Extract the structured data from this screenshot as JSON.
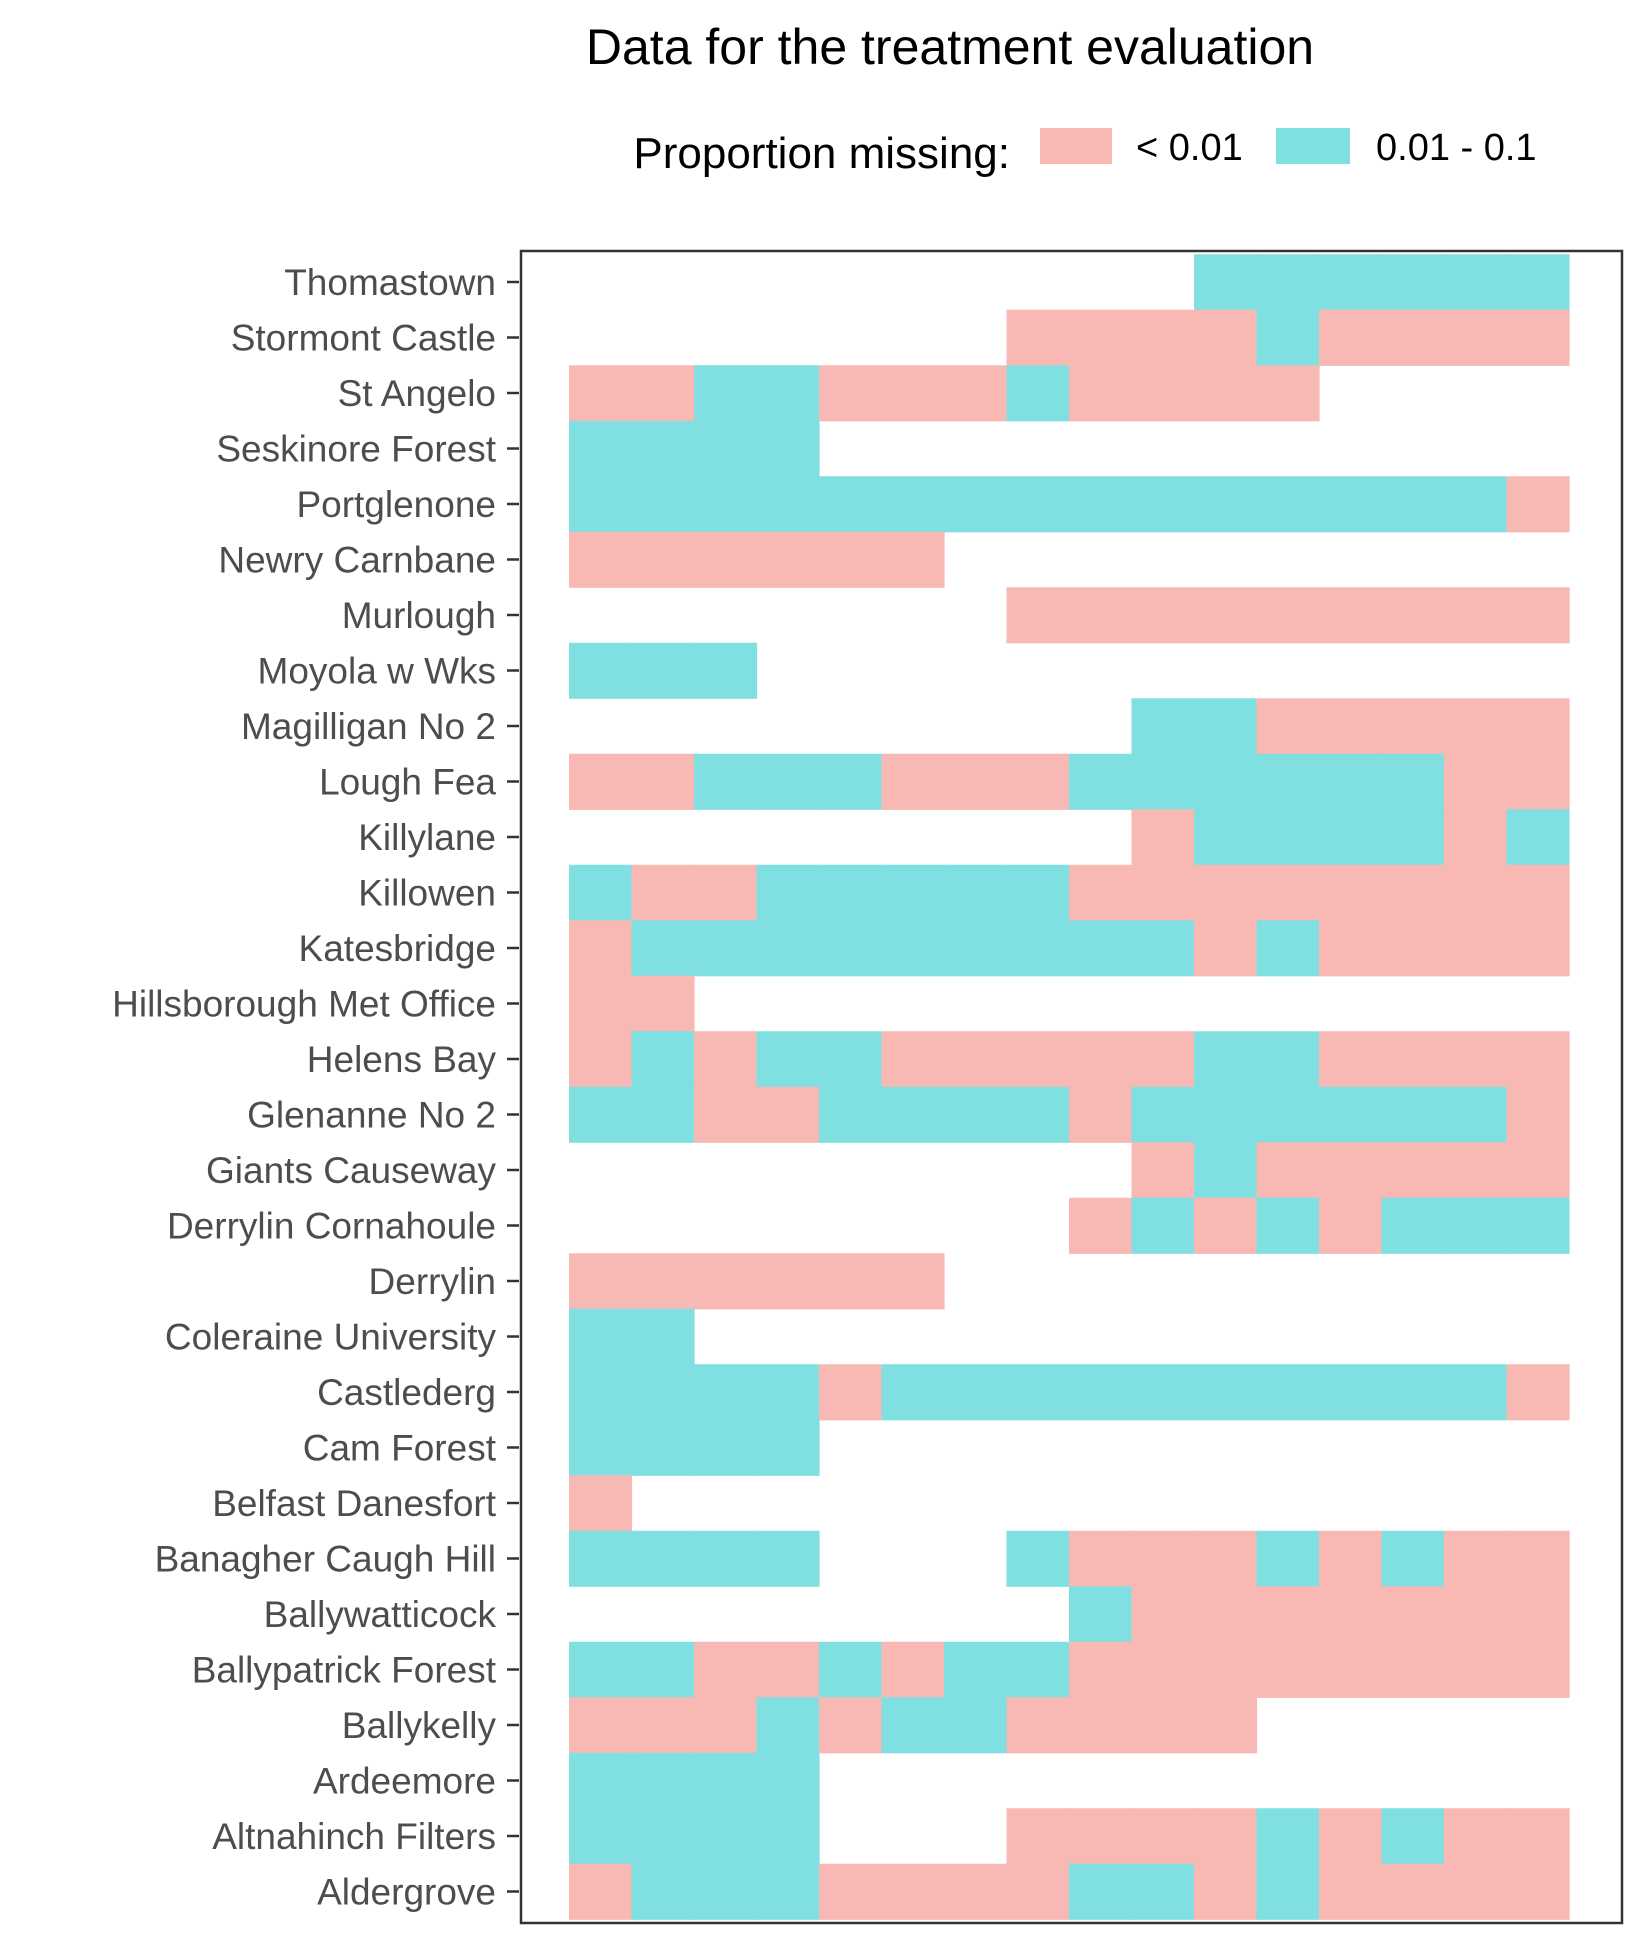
{
  "chart_data": {
    "type": "heatmap",
    "title": "Data for the treatment evaluation",
    "xlabel": "",
    "ylabel": "",
    "legend": {
      "title": "Proportion missing:",
      "position": "top",
      "entries": [
        {
          "code": 1,
          "label": "< 0.01",
          "color": "#F8B8B4"
        },
        {
          "code": 2,
          "label": "0.01 - 0.1",
          "color": "#80DFE0"
        }
      ]
    },
    "n_columns": 16,
    "grid": false,
    "stations": [
      {
        "name": "Thomastown",
        "cells": [
          0,
          0,
          0,
          0,
          0,
          0,
          0,
          0,
          0,
          0,
          2,
          2,
          2,
          2,
          2,
          2
        ]
      },
      {
        "name": "Stormont Castle",
        "cells": [
          0,
          0,
          0,
          0,
          0,
          0,
          0,
          1,
          1,
          1,
          1,
          2,
          1,
          1,
          1,
          1
        ]
      },
      {
        "name": "St Angelo",
        "cells": [
          1,
          1,
          2,
          2,
          1,
          1,
          1,
          2,
          1,
          1,
          1,
          1,
          0,
          0,
          0,
          0
        ]
      },
      {
        "name": "Seskinore Forest",
        "cells": [
          2,
          2,
          2,
          2,
          0,
          0,
          0,
          0,
          0,
          0,
          0,
          0,
          0,
          0,
          0,
          0
        ]
      },
      {
        "name": "Portglenone",
        "cells": [
          2,
          2,
          2,
          2,
          2,
          2,
          2,
          2,
          2,
          2,
          2,
          2,
          2,
          2,
          2,
          1
        ]
      },
      {
        "name": "Newry Carnbane",
        "cells": [
          1,
          1,
          1,
          1,
          1,
          1,
          0,
          0,
          0,
          0,
          0,
          0,
          0,
          0,
          0,
          0
        ]
      },
      {
        "name": "Murlough",
        "cells": [
          0,
          0,
          0,
          0,
          0,
          0,
          0,
          1,
          1,
          1,
          1,
          1,
          1,
          1,
          1,
          1
        ]
      },
      {
        "name": "Moyola w Wks",
        "cells": [
          2,
          2,
          2,
          0,
          0,
          0,
          0,
          0,
          0,
          0,
          0,
          0,
          0,
          0,
          0,
          0
        ]
      },
      {
        "name": "Magilligan No 2",
        "cells": [
          0,
          0,
          0,
          0,
          0,
          0,
          0,
          0,
          0,
          2,
          2,
          1,
          1,
          1,
          1,
          1
        ]
      },
      {
        "name": "Lough Fea",
        "cells": [
          1,
          1,
          2,
          2,
          2,
          1,
          1,
          1,
          2,
          2,
          2,
          2,
          2,
          2,
          1,
          1
        ]
      },
      {
        "name": "Killylane",
        "cells": [
          0,
          0,
          0,
          0,
          0,
          0,
          0,
          0,
          0,
          1,
          2,
          2,
          2,
          2,
          1,
          2
        ]
      },
      {
        "name": "Killowen",
        "cells": [
          2,
          1,
          1,
          2,
          2,
          2,
          2,
          2,
          1,
          1,
          1,
          1,
          1,
          1,
          1,
          1
        ]
      },
      {
        "name": "Katesbridge",
        "cells": [
          1,
          2,
          2,
          2,
          2,
          2,
          2,
          2,
          2,
          2,
          1,
          2,
          1,
          1,
          1,
          1
        ]
      },
      {
        "name": "Hillsborough Met Office",
        "cells": [
          1,
          1,
          0,
          0,
          0,
          0,
          0,
          0,
          0,
          0,
          0,
          0,
          0,
          0,
          0,
          0
        ]
      },
      {
        "name": "Helens Bay",
        "cells": [
          1,
          2,
          1,
          2,
          2,
          1,
          1,
          1,
          1,
          1,
          2,
          2,
          1,
          1,
          1,
          1
        ]
      },
      {
        "name": "Glenanne No 2",
        "cells": [
          2,
          2,
          1,
          1,
          2,
          2,
          2,
          2,
          1,
          2,
          2,
          2,
          2,
          2,
          2,
          1
        ]
      },
      {
        "name": "Giants Causeway",
        "cells": [
          0,
          0,
          0,
          0,
          0,
          0,
          0,
          0,
          0,
          1,
          2,
          1,
          1,
          1,
          1,
          1
        ]
      },
      {
        "name": "Derrylin Cornahoule",
        "cells": [
          0,
          0,
          0,
          0,
          0,
          0,
          0,
          0,
          1,
          2,
          1,
          2,
          1,
          2,
          2,
          2
        ]
      },
      {
        "name": "Derrylin",
        "cells": [
          1,
          1,
          1,
          1,
          1,
          1,
          0,
          0,
          0,
          0,
          0,
          0,
          0,
          0,
          0,
          0
        ]
      },
      {
        "name": "Coleraine University",
        "cells": [
          2,
          2,
          0,
          0,
          0,
          0,
          0,
          0,
          0,
          0,
          0,
          0,
          0,
          0,
          0,
          0
        ]
      },
      {
        "name": "Castlederg",
        "cells": [
          2,
          2,
          2,
          2,
          1,
          2,
          2,
          2,
          2,
          2,
          2,
          2,
          2,
          2,
          2,
          1
        ]
      },
      {
        "name": "Cam Forest",
        "cells": [
          2,
          2,
          2,
          2,
          0,
          0,
          0,
          0,
          0,
          0,
          0,
          0,
          0,
          0,
          0,
          0
        ]
      },
      {
        "name": "Belfast Danesfort",
        "cells": [
          1,
          0,
          0,
          0,
          0,
          0,
          0,
          0,
          0,
          0,
          0,
          0,
          0,
          0,
          0,
          0
        ]
      },
      {
        "name": "Banagher Caugh Hill",
        "cells": [
          2,
          2,
          2,
          2,
          0,
          0,
          0,
          2,
          1,
          1,
          1,
          2,
          1,
          2,
          1,
          1
        ]
      },
      {
        "name": "Ballywatticock",
        "cells": [
          0,
          0,
          0,
          0,
          0,
          0,
          0,
          0,
          2,
          1,
          1,
          1,
          1,
          1,
          1,
          1
        ]
      },
      {
        "name": "Ballypatrick Forest",
        "cells": [
          2,
          2,
          1,
          1,
          2,
          1,
          2,
          2,
          1,
          1,
          1,
          1,
          1,
          1,
          1,
          1
        ]
      },
      {
        "name": "Ballykelly",
        "cells": [
          1,
          1,
          1,
          2,
          1,
          2,
          2,
          1,
          1,
          1,
          1,
          0,
          0,
          0,
          0,
          0
        ]
      },
      {
        "name": "Ardeemore",
        "cells": [
          2,
          2,
          2,
          2,
          0,
          0,
          0,
          0,
          0,
          0,
          0,
          0,
          0,
          0,
          0,
          0
        ]
      },
      {
        "name": "Altnahinch Filters",
        "cells": [
          2,
          2,
          2,
          2,
          0,
          0,
          0,
          1,
          1,
          1,
          1,
          2,
          1,
          2,
          1,
          1
        ]
      },
      {
        "name": "Aldergrove",
        "cells": [
          1,
          2,
          2,
          2,
          1,
          1,
          1,
          1,
          2,
          2,
          1,
          2,
          1,
          1,
          1,
          1
        ]
      }
    ]
  }
}
